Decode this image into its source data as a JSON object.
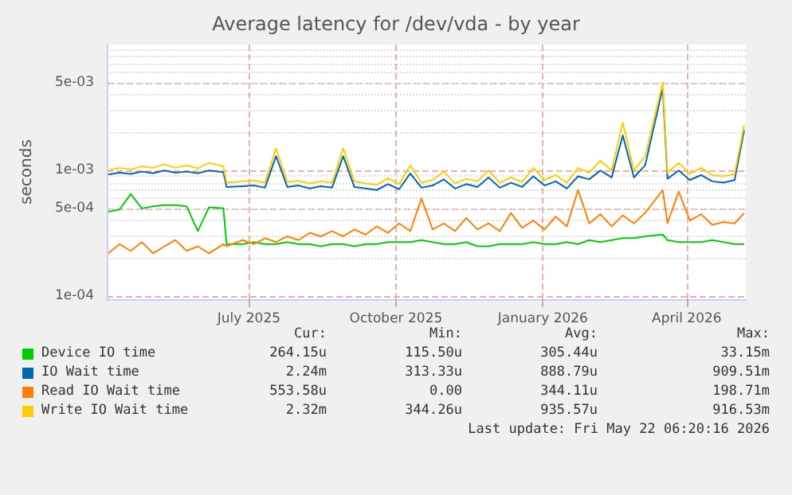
{
  "chart_data": {
    "type": "line",
    "title": "Average latency for /dev/vda - by year",
    "ylabel": "seconds",
    "log": "y",
    "grid": true,
    "legend": "bottom",
    "xlim": [
      "2025-04-18",
      "2026-05-23"
    ],
    "xticks": [
      {
        "value": "2025-07-16",
        "label": "July 2025"
      },
      {
        "value": "2025-10-16",
        "label": "October 2025"
      },
      {
        "value": "2026-01-16",
        "label": "January 2026"
      },
      {
        "value": "2026-04-16",
        "label": "April 2026"
      }
    ],
    "ylim": [
      9.5e-05,
      0.01
    ],
    "yticks": [
      {
        "value": 0.0001,
        "label": "1e-04"
      },
      {
        "value": 0.0005,
        "label": "5e-04"
      },
      {
        "value": 0.001,
        "label": "1e-03"
      },
      {
        "value": 0.005,
        "label": "5e-03"
      }
    ],
    "x": [
      "2025-04-19",
      "2025-04-26",
      "2025-05-03",
      "2025-05-10",
      "2025-05-17",
      "2025-05-24",
      "2025-05-31",
      "2025-06-07",
      "2025-06-14",
      "2025-06-21",
      "2025-06-30",
      "2025-07-02",
      "2025-07-12",
      "2025-07-19",
      "2025-07-26",
      "2025-08-02",
      "2025-08-09",
      "2025-08-16",
      "2025-08-23",
      "2025-08-30",
      "2025-09-06",
      "2025-09-13",
      "2025-09-20",
      "2025-09-27",
      "2025-10-04",
      "2025-10-11",
      "2025-10-18",
      "2025-10-25",
      "2025-11-01",
      "2025-11-08",
      "2025-11-15",
      "2025-11-22",
      "2025-11-29",
      "2025-12-06",
      "2025-12-13",
      "2025-12-20",
      "2025-12-27",
      "2026-01-03",
      "2026-01-10",
      "2026-01-17",
      "2026-01-24",
      "2026-01-31",
      "2026-02-07",
      "2026-02-14",
      "2026-02-21",
      "2026-02-28",
      "2026-03-07",
      "2026-03-14",
      "2026-03-21",
      "2026-04-01",
      "2026-04-04",
      "2026-04-11",
      "2026-04-18",
      "2026-04-25",
      "2026-05-02",
      "2026-05-09",
      "2026-05-16",
      "2026-05-22"
    ],
    "series": [
      {
        "name": "Device IO time",
        "color": "#00cc00",
        "values": [
          0.00047,
          0.00049,
          0.00065,
          0.0005,
          0.00052,
          0.00053,
          0.00053,
          0.00052,
          0.00033,
          0.00051,
          0.0005,
          0.00026,
          0.00026,
          0.00027,
          0.00026,
          0.00026,
          0.00027,
          0.00026,
          0.00026,
          0.00025,
          0.00026,
          0.00026,
          0.00025,
          0.00026,
          0.00026,
          0.00027,
          0.00027,
          0.00027,
          0.00028,
          0.00027,
          0.00026,
          0.00026,
          0.00027,
          0.00025,
          0.00025,
          0.00026,
          0.00026,
          0.00026,
          0.00027,
          0.00026,
          0.00026,
          0.00027,
          0.00026,
          0.00028,
          0.00027,
          0.00028,
          0.00029,
          0.00029,
          0.0003,
          0.00031,
          0.00028,
          0.00027,
          0.00027,
          0.00027,
          0.00028,
          0.00027,
          0.00026,
          0.00026
        ]
      },
      {
        "name": "IO Wait time",
        "color": "#0066b3",
        "values": [
          0.00093,
          0.00096,
          0.00094,
          0.00098,
          0.00095,
          0.001,
          0.00096,
          0.00098,
          0.00095,
          0.001,
          0.00097,
          0.00074,
          0.00075,
          0.00076,
          0.00073,
          0.0013,
          0.00074,
          0.00076,
          0.00072,
          0.00075,
          0.00073,
          0.0013,
          0.00074,
          0.00072,
          0.0007,
          0.00078,
          0.00071,
          0.00095,
          0.00073,
          0.00076,
          0.00085,
          0.00072,
          0.00078,
          0.00074,
          0.00088,
          0.00073,
          0.0008,
          0.00074,
          0.0009,
          0.00076,
          0.00082,
          0.00072,
          0.0009,
          0.00085,
          0.001,
          0.00088,
          0.0019,
          0.00088,
          0.0011,
          0.0045,
          0.00086,
          0.001,
          0.00084,
          0.00092,
          0.00082,
          0.0008,
          0.00084,
          0.0021
        ]
      },
      {
        "name": "Read IO Wait time",
        "color": "#ff8000",
        "values": [
          0.00022,
          0.00026,
          0.00023,
          0.00027,
          0.00022,
          0.00025,
          0.00028,
          0.00023,
          0.00025,
          0.00022,
          0.00026,
          0.00025,
          0.00028,
          0.00026,
          0.00029,
          0.00027,
          0.0003,
          0.00028,
          0.00032,
          0.0003,
          0.00033,
          0.0003,
          0.00034,
          0.00031,
          0.00036,
          0.00032,
          0.00038,
          0.00033,
          0.0006,
          0.00034,
          0.00038,
          0.00033,
          0.00042,
          0.00034,
          0.00038,
          0.00033,
          0.00046,
          0.00035,
          0.0004,
          0.00034,
          0.00043,
          0.00036,
          0.0007,
          0.00038,
          0.00045,
          0.00036,
          0.00044,
          0.00038,
          0.00046,
          0.0007,
          0.00038,
          0.00068,
          0.0004,
          0.00045,
          0.00037,
          0.00039,
          0.00038,
          0.00046
        ]
      },
      {
        "name": "Write IO Wait time",
        "color": "#ffcc00",
        "values": [
          0.001,
          0.00105,
          0.00102,
          0.00108,
          0.00105,
          0.00112,
          0.00105,
          0.0011,
          0.00104,
          0.00115,
          0.00108,
          0.0008,
          0.00082,
          0.00083,
          0.0008,
          0.0015,
          0.00081,
          0.00083,
          0.00079,
          0.00082,
          0.0008,
          0.0015,
          0.00082,
          0.00079,
          0.00077,
          0.00087,
          0.00078,
          0.0011,
          0.0008,
          0.00084,
          0.00098,
          0.00079,
          0.00086,
          0.00082,
          0.001,
          0.0008,
          0.00088,
          0.00081,
          0.00105,
          0.00084,
          0.00092,
          0.0008,
          0.00105,
          0.00096,
          0.0012,
          0.001,
          0.0024,
          0.001,
          0.0013,
          0.005,
          0.00096,
          0.00115,
          0.00094,
          0.00105,
          0.00092,
          0.0009,
          0.00094,
          0.0023
        ]
      }
    ],
    "annotations": [
      "Cur:",
      "Min:",
      "Avg:",
      "Max:",
      "264.15u",
      "115.50u",
      "305.44u",
      "33.15m",
      "2.24m",
      "313.33u",
      "888.79u",
      "909.51m",
      "553.58u",
      "0.00",
      "344.11u",
      "198.71m",
      "2.32m",
      "344.26u",
      "935.57u",
      "916.53m",
      "Last update: Fri May 22 06:20:16 2026"
    ]
  }
}
